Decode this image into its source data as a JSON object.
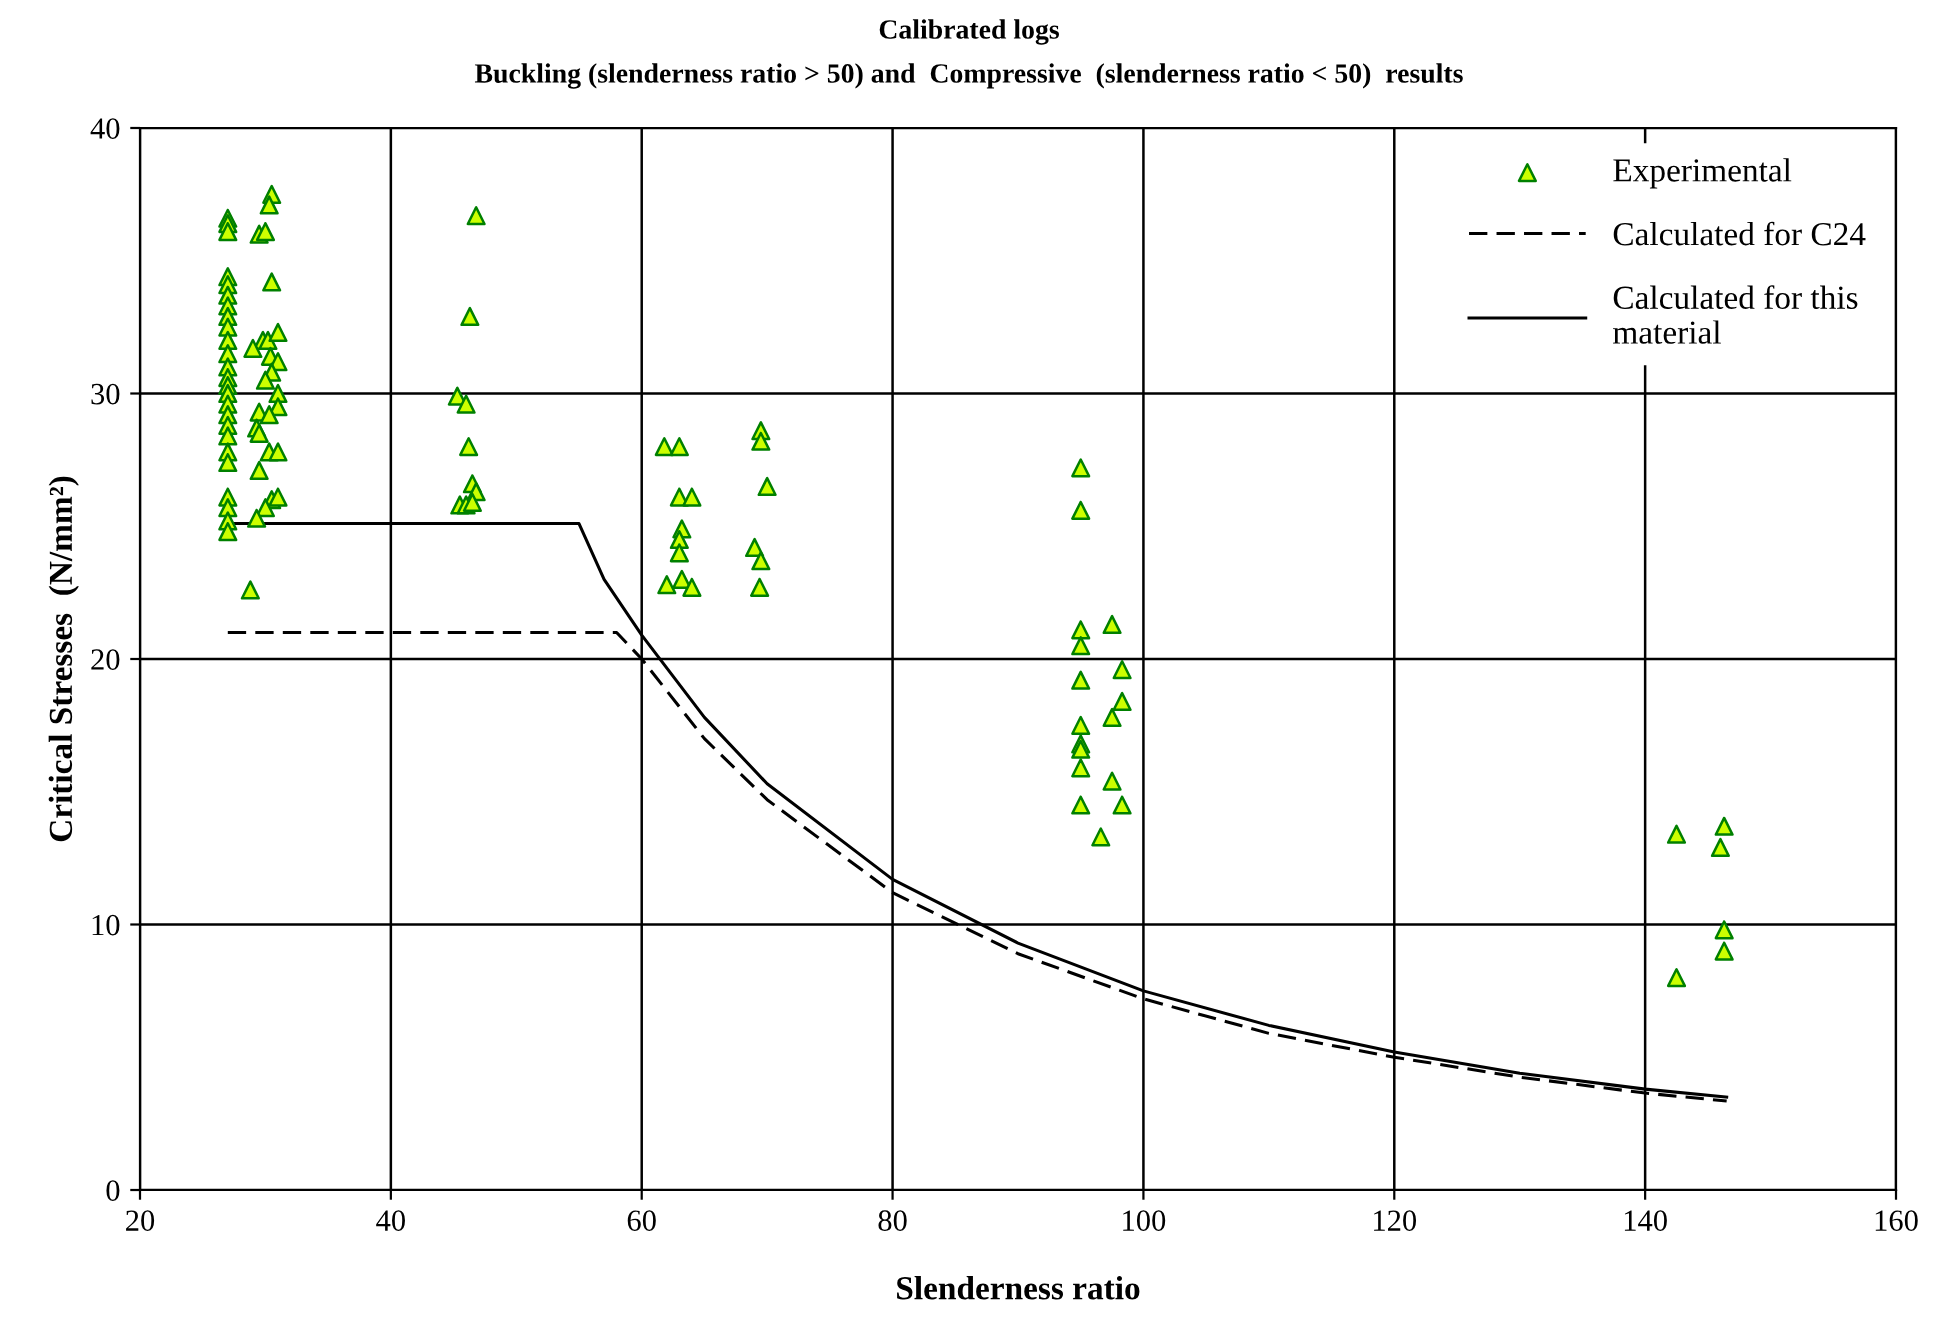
{
  "chart_data": {
    "type": "scatter",
    "title": "Calibrated logs",
    "subtitle": "Buckling (slenderness ratio > 50) and  Compressive  (slenderness ratio < 50)  results",
    "xlabel": "Slenderness ratio",
    "ylabel": "Critical Stresses  (N/mm²)",
    "xlim": [
      20,
      160
    ],
    "xticks": [
      20,
      40,
      60,
      80,
      100,
      120,
      140,
      160
    ],
    "ylim": [
      0,
      40
    ],
    "yticks": [
      0,
      10,
      20,
      30,
      40
    ],
    "grid": true,
    "legend": "top right",
    "series": [
      {
        "name": "Experimental",
        "marker": "triangle",
        "color": "#ccff00",
        "x": [
          27,
          27,
          27,
          27,
          27,
          27,
          27,
          27,
          27,
          27,
          27,
          27,
          27,
          27,
          27,
          27,
          27,
          27,
          27,
          27,
          27,
          27,
          27,
          27,
          27,
          30.5,
          30.3,
          29.5,
          30,
          30.5,
          29.8,
          30.2,
          31,
          29,
          30.4,
          31,
          30.5,
          30,
          31,
          31,
          29.5,
          30.3,
          29.3,
          29.5,
          30.3,
          29.5,
          31,
          30.5,
          31,
          30,
          29.3,
          28.8,
          46.8,
          46.3,
          45.3,
          46,
          46.2,
          46.5,
          46.8,
          45.5,
          46,
          46.5,
          61.8,
          63,
          63,
          64,
          63.2,
          63,
          63,
          62,
          63.2,
          64,
          69.5,
          69.5,
          70,
          69,
          69.5,
          69.4,
          95,
          95,
          95,
          95,
          97.5,
          98.3,
          95,
          98.3,
          97.5,
          95,
          95,
          95,
          95,
          97.5,
          95,
          98.3,
          96.6,
          142.5,
          146.3,
          146,
          146.3,
          146.3,
          142.5
        ],
        "values": [
          36.6,
          36.4,
          36.1,
          34.4,
          34.1,
          33.7,
          33.3,
          32.9,
          32.5,
          32.0,
          31.5,
          31.0,
          30.6,
          30.3,
          30.0,
          29.6,
          29.2,
          28.8,
          28.4,
          27.8,
          27.4,
          26.1,
          25.7,
          25.2,
          24.8,
          37.5,
          37.1,
          36.0,
          36.1,
          34.2,
          32.0,
          32.0,
          32.3,
          31.7,
          31.4,
          31.2,
          30.8,
          30.5,
          30.0,
          29.5,
          29.3,
          29.2,
          28.7,
          28.5,
          27.8,
          27.1,
          27.8,
          26.0,
          26.1,
          25.7,
          25.3,
          22.6,
          36.7,
          32.9,
          29.9,
          29.6,
          28.0,
          26.6,
          26.3,
          25.8,
          25.8,
          25.9,
          28.0,
          28.0,
          26.1,
          26.1,
          24.9,
          24.5,
          24.0,
          22.8,
          23.0,
          22.7,
          28.6,
          28.2,
          26.5,
          24.2,
          23.7,
          22.7,
          27.2,
          25.6,
          21.1,
          20.5,
          21.3,
          19.6,
          19.2,
          18.4,
          17.8,
          17.5,
          16.8,
          16.6,
          15.9,
          15.4,
          14.5,
          14.5,
          13.3,
          13.4,
          13.7,
          12.9,
          9.8,
          9.0,
          8.0
        ]
      },
      {
        "name": "Calculated for C24",
        "type": "line",
        "line_style": "dashed",
        "marker": "none",
        "color": "#000000",
        "x": [
          27,
          58,
          60,
          65,
          70,
          80,
          90,
          100,
          110,
          120,
          130,
          140,
          146.5
        ],
        "values": [
          21,
          21,
          20.0,
          17.0,
          14.7,
          11.2,
          8.9,
          7.2,
          5.9,
          5.0,
          4.25,
          3.65,
          3.35
        ]
      },
      {
        "name": "Calculated for this\nmaterial",
        "type": "line",
        "line_style": "solid",
        "marker": "none",
        "color": "#000000",
        "x": [
          27,
          55,
          57,
          60,
          65,
          70,
          80,
          90,
          100,
          110,
          120,
          130,
          140,
          146.5
        ],
        "values": [
          25.1,
          25.1,
          23.0,
          20.9,
          17.8,
          15.3,
          11.7,
          9.3,
          7.5,
          6.2,
          5.2,
          4.4,
          3.8,
          3.5
        ]
      }
    ]
  }
}
